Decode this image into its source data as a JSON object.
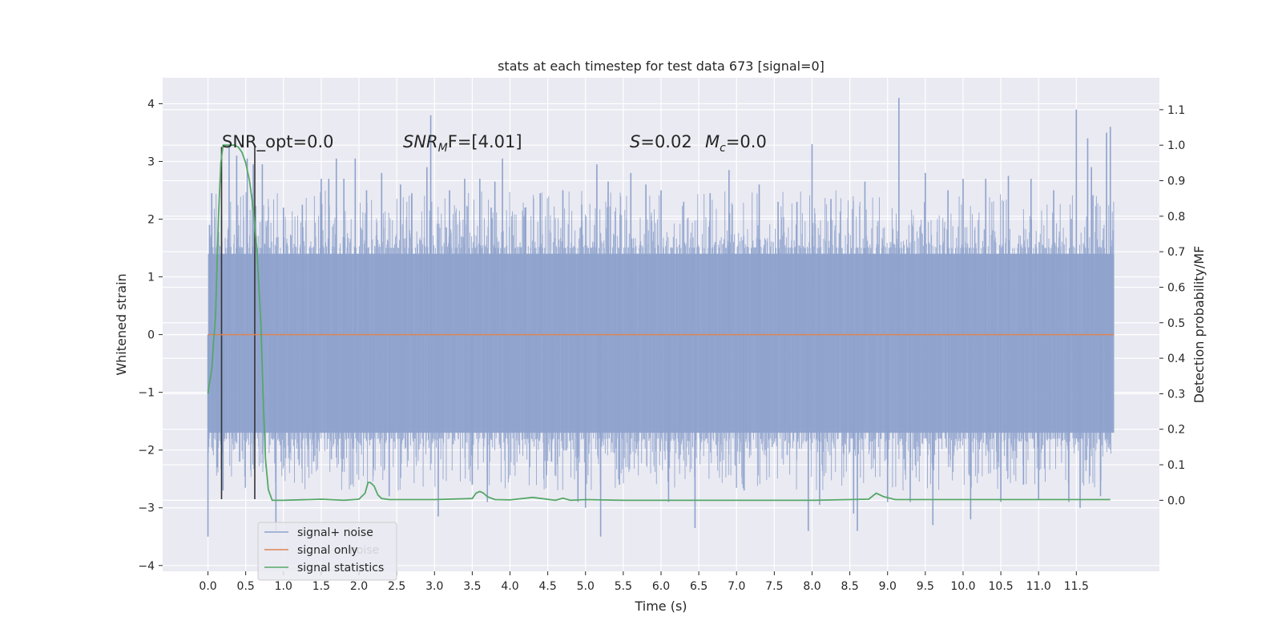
{
  "chart_data": {
    "type": "line",
    "title": "stats at each timestep for test data 673 [signal=0]",
    "xlabel": "Time (s)",
    "ylabel": "Whitened strain",
    "ylabel_right": "Detection probability/MF",
    "xlim": [
      -0.6,
      12.6
    ],
    "ylim": [
      -4.1,
      4.45
    ],
    "ylim_right": [
      -0.2,
      1.19
    ],
    "x_ticks": [
      "0.0",
      "0.5",
      "1.0",
      "1.5",
      "2.0",
      "2.5",
      "3.0",
      "3.5",
      "4.0",
      "4.5",
      "5.0",
      "5.5",
      "6.0",
      "6.5",
      "7.0",
      "7.5",
      "8.0",
      "8.5",
      "9.0",
      "9.5",
      "10.0",
      "10.5",
      "11.0",
      "11.5"
    ],
    "y_ticks": [
      "4",
      "3",
      "2",
      "1",
      "0",
      "−1",
      "−2",
      "−3",
      "−4"
    ],
    "y_ticks_right": [
      "1.1",
      "1.0",
      "0.9",
      "0.8",
      "0.7",
      "0.6",
      "0.5",
      "0.4",
      "0.3",
      "0.2",
      "0.1",
      "0.0"
    ],
    "grid": true,
    "legend_position": "lower-left",
    "series": [
      {
        "name": "signal+ noise",
        "color": "#8ea2cc",
        "axis": "left",
        "x_range": [
          0.0,
          12.0
        ],
        "envelope": {
          "core_low": -1.7,
          "core_high": 1.4
        },
        "spikes": [
          [
            0.0,
            -3.5
          ],
          [
            0.02,
            1.9
          ],
          [
            0.05,
            2.45
          ],
          [
            0.12,
            -2.3
          ],
          [
            0.18,
            2.05
          ],
          [
            0.2,
            -2.7
          ],
          [
            0.28,
            3.25
          ],
          [
            0.38,
            3.1
          ],
          [
            0.42,
            -2.2
          ],
          [
            0.52,
            3.05
          ],
          [
            0.6,
            2.95
          ],
          [
            0.72,
            2.95
          ],
          [
            0.9,
            -3.4
          ],
          [
            1.0,
            2.2
          ],
          [
            1.25,
            2.25
          ],
          [
            1.4,
            -2.2
          ],
          [
            1.5,
            2.7
          ],
          [
            1.6,
            2.7
          ],
          [
            1.7,
            3.05
          ],
          [
            1.8,
            2.7
          ],
          [
            1.95,
            3.05
          ],
          [
            2.1,
            2.5
          ],
          [
            2.3,
            2.8
          ],
          [
            2.4,
            -2.8
          ],
          [
            2.55,
            2.6
          ],
          [
            2.7,
            2.45
          ],
          [
            2.9,
            2.9
          ],
          [
            2.95,
            3.8
          ],
          [
            3.05,
            -3.15
          ],
          [
            3.2,
            2.5
          ],
          [
            3.4,
            2.7
          ],
          [
            3.5,
            -2.6
          ],
          [
            3.6,
            2.7
          ],
          [
            3.7,
            -2.9
          ],
          [
            3.75,
            2.2
          ],
          [
            3.8,
            2.65
          ],
          [
            3.9,
            3.05
          ],
          [
            4.2,
            2.2
          ],
          [
            4.4,
            2.45
          ],
          [
            4.55,
            -2.2
          ],
          [
            4.7,
            2.5
          ],
          [
            4.9,
            -2.9
          ],
          [
            4.95,
            2.25
          ],
          [
            5.0,
            -3.0
          ],
          [
            5.15,
            2.95
          ],
          [
            5.2,
            -3.5
          ],
          [
            5.3,
            2.65
          ],
          [
            5.45,
            -2.6
          ],
          [
            5.6,
            2.8
          ],
          [
            5.8,
            2.6
          ],
          [
            6.0,
            2.5
          ],
          [
            6.1,
            -2.9
          ],
          [
            6.3,
            2.3
          ],
          [
            6.45,
            -3.35
          ],
          [
            6.65,
            2.45
          ],
          [
            6.9,
            2.85
          ],
          [
            7.1,
            -2.7
          ],
          [
            7.3,
            2.6
          ],
          [
            7.55,
            2.3
          ],
          [
            7.8,
            2.3
          ],
          [
            7.95,
            -3.4
          ],
          [
            8.0,
            3.3
          ],
          [
            8.1,
            -2.95
          ],
          [
            8.25,
            2.35
          ],
          [
            8.55,
            -3.1
          ],
          [
            8.6,
            -3.4
          ],
          [
            8.7,
            2.65
          ],
          [
            9.0,
            -2.9
          ],
          [
            9.15,
            4.1
          ],
          [
            9.3,
            -2.9
          ],
          [
            9.5,
            2.8
          ],
          [
            9.6,
            -3.3
          ],
          [
            9.8,
            2.5
          ],
          [
            10.0,
            2.7
          ],
          [
            10.1,
            -3.2
          ],
          [
            10.3,
            2.7
          ],
          [
            10.5,
            -2.9
          ],
          [
            10.6,
            2.75
          ],
          [
            10.8,
            -2.6
          ],
          [
            10.9,
            2.7
          ],
          [
            11.0,
            -2.85
          ],
          [
            11.2,
            2.5
          ],
          [
            11.4,
            -2.9
          ],
          [
            11.5,
            3.9
          ],
          [
            11.55,
            -3.0
          ],
          [
            11.65,
            3.4
          ],
          [
            11.7,
            2.9
          ],
          [
            11.82,
            -2.8
          ],
          [
            11.9,
            3.5
          ],
          [
            11.95,
            3.6
          ]
        ]
      },
      {
        "name": "signal only",
        "color": "#dd8452",
        "axis": "left",
        "x": [
          0.0,
          12.0
        ],
        "y": [
          0.0,
          0.0
        ]
      },
      {
        "name": "signal statistics",
        "color": "#55a868",
        "axis": "right",
        "x": [
          0.0,
          0.05,
          0.1,
          0.14,
          0.17,
          0.2,
          0.23,
          0.26,
          0.3,
          0.35,
          0.4,
          0.45,
          0.5,
          0.55,
          0.6,
          0.65,
          0.7,
          0.73,
          0.76,
          0.8,
          0.85,
          0.9,
          1.0,
          1.5,
          1.8,
          2.0,
          2.08,
          2.12,
          2.15,
          2.2,
          2.25,
          2.3,
          2.4,
          2.6,
          3.0,
          3.5,
          3.55,
          3.6,
          3.65,
          3.7,
          3.8,
          4.0,
          4.3,
          4.6,
          4.7,
          4.8,
          5.0,
          5.5,
          7.0,
          8.0,
          8.75,
          8.85,
          8.95,
          9.1,
          9.5,
          10.0,
          11.0,
          11.5,
          11.95
        ],
        "y": [
          0.3,
          0.37,
          0.52,
          0.8,
          0.95,
          1.0,
          1.0,
          1.0,
          1.0,
          1.0,
          0.995,
          0.98,
          0.95,
          0.9,
          0.82,
          0.7,
          0.5,
          0.3,
          0.12,
          0.03,
          0.0,
          0.0,
          0.0,
          0.003,
          0.0,
          0.003,
          0.02,
          0.05,
          0.05,
          0.04,
          0.015,
          0.005,
          0.002,
          0.002,
          0.002,
          0.005,
          0.02,
          0.025,
          0.02,
          0.01,
          0.002,
          0.001,
          0.008,
          0.0,
          0.006,
          0.0,
          0.002,
          0.0,
          0.0,
          0.0,
          0.003,
          0.02,
          0.01,
          0.002,
          0.002,
          0.002,
          0.002,
          0.002,
          0.002
        ]
      }
    ],
    "vlines": [
      {
        "x": 0.18,
        "ymin": -2.85,
        "ymax": 3.25,
        "color": "#333333"
      },
      {
        "x": 0.62,
        "ymin": -2.85,
        "ymax": 3.25,
        "color": "#333333"
      }
    ],
    "annotations": {
      "snr_opt": "SNR_opt=0.0",
      "snr_mf_sym": "SNR",
      "snr_mf_sub": "M",
      "snr_mf_rest": "F=[4.01]",
      "s_sym": "S",
      "s_val": "=0.02",
      "mc_sym": "M",
      "mc_sub": "c",
      "mc_val": "=0.0"
    },
    "legend_ghost_text": "noise"
  }
}
